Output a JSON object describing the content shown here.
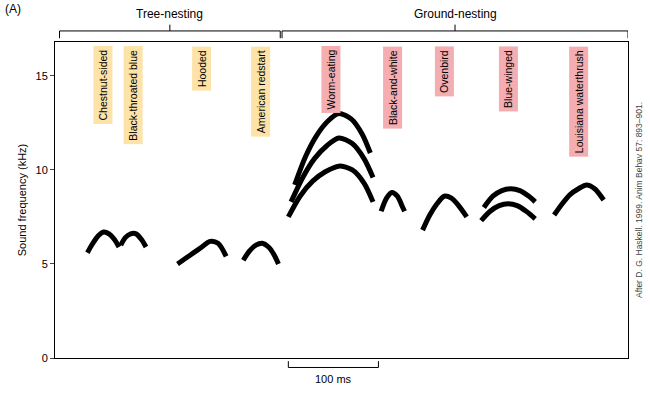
{
  "chart_data": {
    "type": "line",
    "panel": "(A)",
    "y_label": "Sound frequency (kHz)",
    "credit": "After D. G. Haskell. 1999. Anim Behav 57: 893–901.",
    "xlim": [
      0,
      636
    ],
    "xticks": [],
    "ylim": [
      0,
      16.8
    ],
    "yticks": [
      0,
      5,
      10,
      15
    ],
    "tick_labels": "y",
    "grid": false,
    "color": "#000000",
    "scale_bar": {
      "x0": 259,
      "x1": 359,
      "label": "100 ms"
    },
    "groups": [
      {
        "label": "Tree-nesting",
        "x0": 5,
        "x1": 250,
        "color": "#fde3a7"
      },
      {
        "label": "Ground-nesting",
        "x0": 252,
        "x1": 636,
        "color": "#f4aeb1"
      }
    ],
    "series": [
      {
        "name": "Chestnut-sided",
        "group": "Tree-nesting",
        "x": [
          36,
          42,
          48,
          54,
          60,
          66,
          71
        ],
        "values": [
          5.6,
          6.1,
          6.5,
          6.7,
          6.6,
          6.3,
          5.9
        ]
      },
      {
        "name": "Black-throated blue",
        "group": "Tree-nesting",
        "x": [
          73,
          78,
          84,
          90,
          96,
          101
        ],
        "values": [
          6.0,
          6.4,
          6.6,
          6.6,
          6.3,
          5.9
        ]
      },
      {
        "name": "Hooded",
        "group": "Tree-nesting",
        "x": [
          136,
          145,
          154,
          163,
          172,
          181,
          190
        ],
        "values": [
          5.0,
          5.3,
          5.6,
          5.9,
          6.2,
          6.1,
          5.4
        ]
      },
      {
        "name": "American redstart",
        "group": "Tree-nesting",
        "x": [
          209,
          216,
          223,
          230,
          237,
          243,
          248
        ],
        "values": [
          5.2,
          5.7,
          6.0,
          6.1,
          5.9,
          5.5,
          5.0
        ]
      },
      {
        "name": "Worm-eating",
        "group": "Ground-nesting",
        "x": [
          259,
          272,
          286,
          300,
          315,
          330,
          343,
          353,
          null,
          262,
          275,
          288,
          302,
          315,
          330,
          343,
          353,
          null,
          266,
          278,
          290,
          303,
          315,
          329,
          341,
          350
        ],
        "values": [
          7.5,
          8.6,
          9.4,
          9.9,
          10.2,
          10.0,
          9.3,
          8.3,
          null,
          8.3,
          9.6,
          10.6,
          11.3,
          11.7,
          11.4,
          10.6,
          9.6,
          null,
          9.2,
          10.7,
          11.8,
          12.6,
          13.0,
          12.7,
          11.9,
          10.9
        ]
      },
      {
        "name": "Black-and-white",
        "group": "Ground-nesting",
        "x": [
          362,
          368,
          374,
          380,
          386,
          388
        ],
        "values": [
          7.8,
          8.5,
          8.8,
          8.6,
          8.0,
          7.8
        ]
      },
      {
        "name": "Ovenbird",
        "group": "Ground-nesting",
        "x": [
          408,
          416,
          424,
          432,
          440,
          448,
          457
        ],
        "values": [
          6.8,
          7.6,
          8.2,
          8.6,
          8.5,
          8.1,
          7.5
        ]
      },
      {
        "name": "Blue-winged",
        "group": "Ground-nesting",
        "x": [
          473,
          483,
          493,
          503,
          513,
          523,
          533,
          null,
          476,
          486,
          496,
          506,
          516,
          526,
          533
        ],
        "values": [
          7.3,
          7.8,
          8.1,
          8.2,
          8.1,
          7.8,
          7.4,
          null,
          8.0,
          8.6,
          8.9,
          9.0,
          8.9,
          8.6,
          8.3
        ]
      },
      {
        "name": "Louisiana waterthrush",
        "group": "Ground-nesting",
        "x": [
          554,
          563,
          572,
          581,
          590,
          599,
          609
        ],
        "values": [
          7.6,
          8.2,
          8.7,
          9.0,
          9.2,
          9.0,
          8.4
        ]
      }
    ]
  }
}
